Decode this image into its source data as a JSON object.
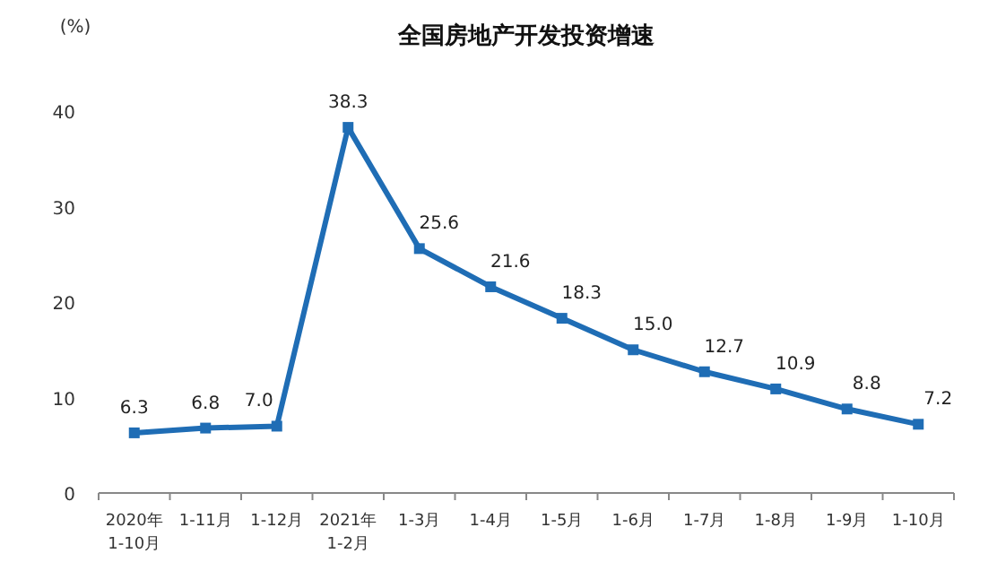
{
  "chart_data": {
    "type": "line",
    "title": "全国房地产开发投资增速",
    "ylabel": "(%)",
    "categories": [
      "2020年\n1-10月",
      "1-11月",
      "1-12月",
      "2021年\n1-2月",
      "1-3月",
      "1-4月",
      "1-5月",
      "1-6月",
      "1-7月",
      "1-8月",
      "1-9月",
      "1-10月"
    ],
    "series": [
      {
        "color": "#1f6db5",
        "values": [
          6.3,
          6.8,
          7.0,
          38.3,
          25.6,
          21.6,
          18.3,
          15.0,
          12.7,
          10.9,
          8.8,
          7.2
        ],
        "value_labels": [
          "6.3",
          "6.8",
          "7.0",
          "38.3",
          "25.6",
          "21.6",
          "18.3",
          "15.0",
          "12.7",
          "10.9",
          "8.8",
          "7.2"
        ]
      }
    ],
    "ylim": [
      0,
      40
    ],
    "yticks": [
      0,
      10,
      20,
      30,
      40
    ],
    "marker": "square",
    "line_style": "solid",
    "grid": false
  }
}
